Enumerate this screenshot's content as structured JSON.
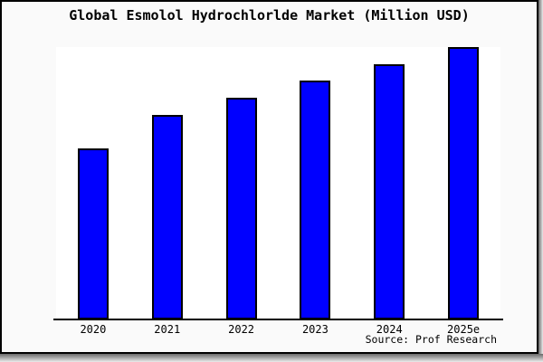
{
  "chart_data": {
    "type": "bar",
    "title": "Global Esmolol Hydrochlorlde Market (Million USD)",
    "categories": [
      "2020",
      "2021",
      "2022",
      "2023",
      "2024",
      "2025e"
    ],
    "values": [
      62.8,
      75.1,
      81.4,
      87.7,
      93.7,
      100
    ],
    "xlabel": "",
    "ylabel": "",
    "ylim": [
      0,
      100
    ],
    "grid": false,
    "legend": false,
    "bar_color": "#0000ff",
    "bar_border_color": "#000000"
  },
  "source": "Source: Prof Research",
  "colors": {
    "page_bg": "#fafafa",
    "plot_bg": "#ffffff",
    "frame": "#000000",
    "shadow_dark": "#6a6a6a",
    "shadow_light": "#ebebeb"
  }
}
